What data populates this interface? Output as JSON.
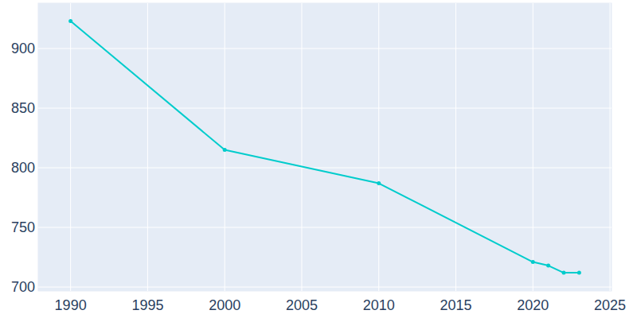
{
  "chart_data": {
    "type": "line",
    "x": [
      1990,
      2000,
      2010,
      2020,
      2021,
      2022,
      2023
    ],
    "values": [
      923,
      815,
      787,
      721,
      718,
      712,
      712
    ],
    "color": "#00cccc",
    "marker": "circle",
    "xlim": [
      1987.9,
      2025.1
    ],
    "xticks": [
      1990,
      1995,
      2000,
      2005,
      2010,
      2015,
      2020,
      2025
    ],
    "ylim": [
      696.7,
      938
    ],
    "yticks": [
      700,
      750,
      800,
      850,
      900
    ],
    "grid": true
  }
}
